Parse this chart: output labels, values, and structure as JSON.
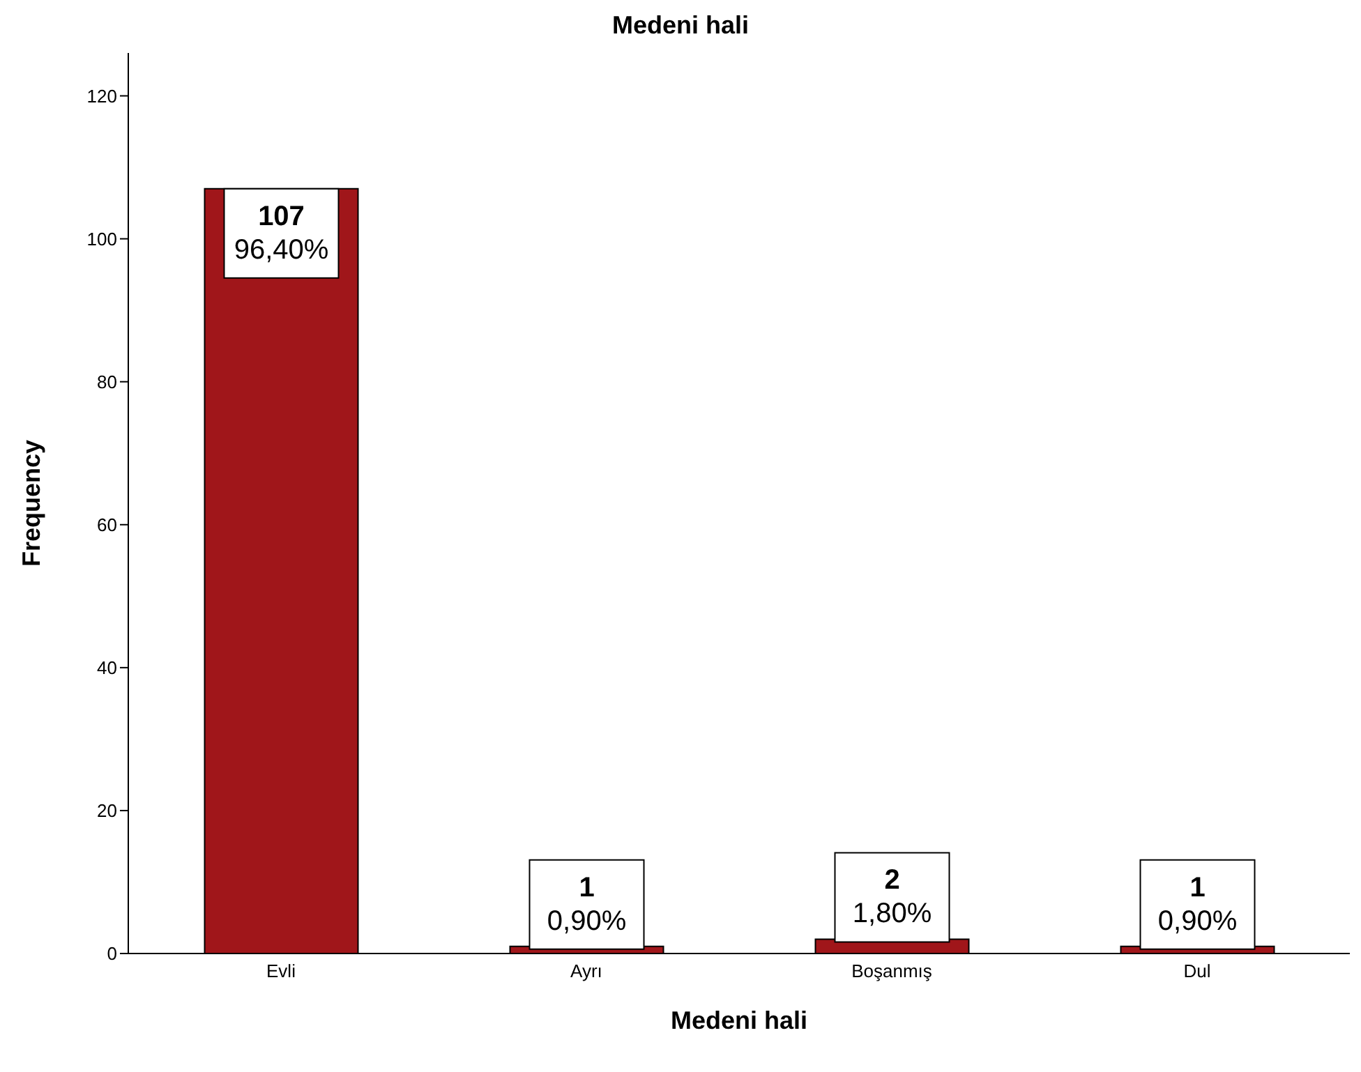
{
  "chart_data": {
    "type": "bar",
    "title": "Medeni hali",
    "xlabel": "Medeni hali",
    "ylabel": "Frequency",
    "categories": [
      "Evli",
      "Ayrı",
      "Boşanmış",
      "Dul"
    ],
    "values": [
      107,
      1,
      2,
      1
    ],
    "value_labels": [
      "107\n96,40%",
      "1\n0,90%",
      "2\n1,80%",
      "1\n0,90%"
    ],
    "color": "#a0161a",
    "ylim": [
      0,
      126
    ],
    "yticks": [
      0,
      20,
      40,
      60,
      80,
      100,
      120
    ],
    "grid": false
  }
}
